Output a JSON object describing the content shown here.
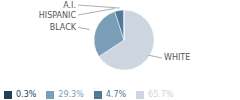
{
  "chart_data": {
    "type": "pie",
    "categories": [
      "WHITE",
      "BLACK",
      "HISPANIC",
      "A.I."
    ],
    "values": [
      65.7,
      29.3,
      4.7,
      0.3
    ],
    "value_labels": [
      "65.7%",
      "29.3%",
      "4.7%",
      "0.3%"
    ],
    "colors": [
      "#cdd5e0",
      "#7a9db8",
      "#4d7a97",
      "#1e3f5a"
    ],
    "legend": "lower left"
  }
}
